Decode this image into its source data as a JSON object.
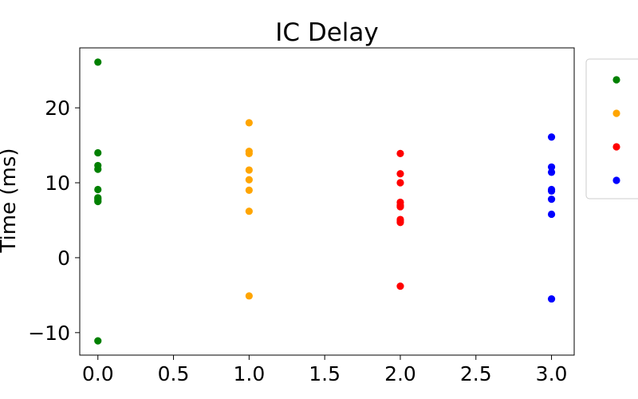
{
  "chart_data": {
    "type": "scatter",
    "title": "IC Delay",
    "xlabel": "",
    "ylabel": "Time (ms)",
    "xlim": [
      -0.12,
      3.15
    ],
    "ylim": [
      -13,
      28
    ],
    "x_ticks": [
      0.0,
      0.5,
      1.0,
      1.5,
      2.0,
      2.5,
      3.0
    ],
    "x_tick_labels": [
      "0.0",
      "0.5",
      "1.0",
      "1.5",
      "2.0",
      "2.5",
      "3.0"
    ],
    "y_ticks": [
      -10,
      0,
      10,
      20
    ],
    "y_tick_labels": [
      "−10",
      "0",
      "10",
      "20"
    ],
    "grid": false,
    "legend_placement": "outside-right",
    "series": [
      {
        "color": "#008000",
        "x": [
          0,
          0,
          0,
          0,
          0,
          0,
          0,
          0,
          0,
          0
        ],
        "y": [
          26.1,
          14.0,
          12.3,
          11.8,
          9.1,
          8.0,
          7.8,
          7.5,
          7.6,
          -11.1
        ]
      },
      {
        "color": "#ffa500",
        "x": [
          1,
          1,
          1,
          1,
          1,
          1,
          1,
          1
        ],
        "y": [
          18.0,
          14.2,
          13.9,
          11.7,
          10.4,
          9.0,
          6.2,
          -5.1
        ]
      },
      {
        "color": "#ff0000",
        "x": [
          2,
          2,
          2,
          2,
          2,
          2,
          2,
          2,
          2,
          2
        ],
        "y": [
          13.9,
          11.2,
          10.0,
          7.4,
          7.0,
          6.8,
          5.1,
          4.7,
          4.9,
          -3.8
        ]
      },
      {
        "color": "#0000ff",
        "x": [
          3,
          3,
          3,
          3,
          3,
          3,
          3,
          3
        ],
        "y": [
          16.1,
          12.1,
          11.4,
          9.1,
          8.9,
          7.8,
          5.8,
          -5.5
        ]
      }
    ]
  }
}
